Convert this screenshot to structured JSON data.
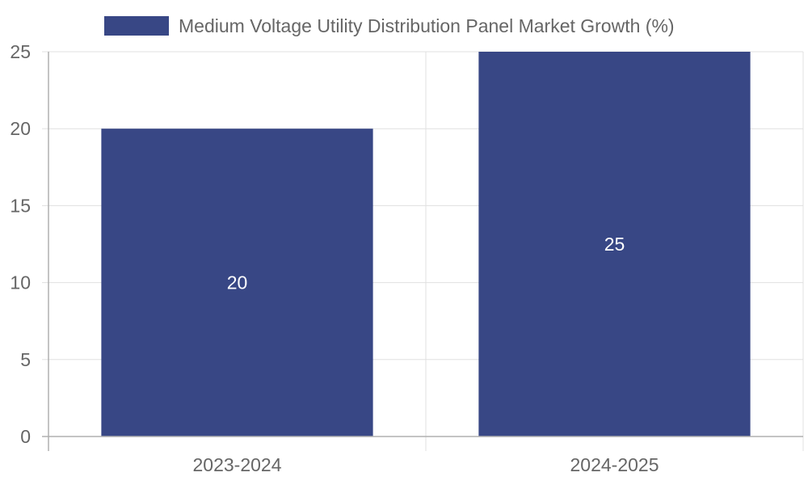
{
  "chart_data": {
    "type": "bar",
    "categories": [
      "2023-2024",
      "2024-2025"
    ],
    "series": [
      {
        "name": "Medium Voltage Utility Distribution Panel Market Growth (%)",
        "values": [
          20,
          25
        ],
        "color": "#384785"
      }
    ],
    "data_labels": [
      "20",
      "25"
    ],
    "y_ticks": [
      0,
      5,
      10,
      15,
      20,
      25
    ],
    "ylim": [
      0,
      25
    ],
    "title": "",
    "xlabel": "",
    "ylabel": "",
    "grid": true,
    "legend_position": "top-center"
  },
  "colors": {
    "bar": "#384785",
    "grid": "#e0e0e0",
    "axis": "#b0b0b0",
    "text": "#666666",
    "label": "#ffffff"
  }
}
